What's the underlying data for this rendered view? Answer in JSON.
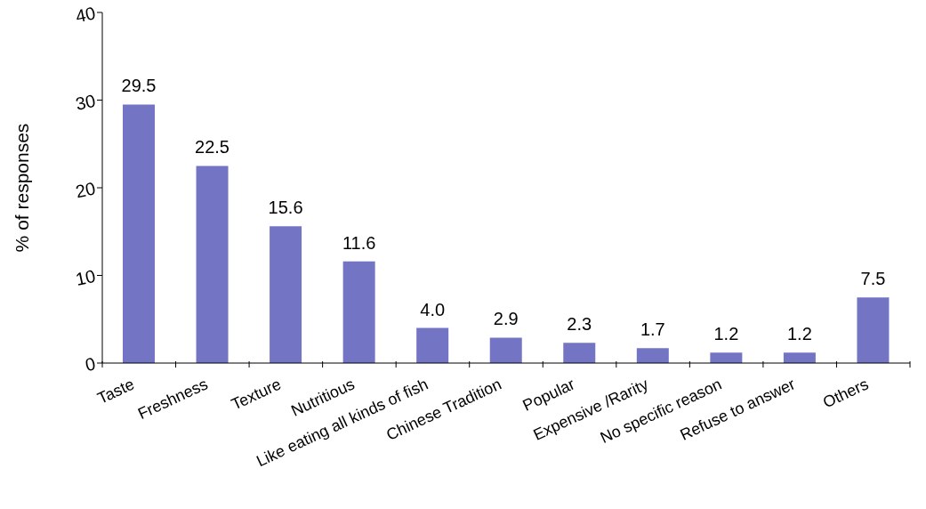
{
  "chart_data": {
    "type": "bar",
    "ylabel": "% of responses",
    "categories": [
      "Taste",
      "Freshness",
      "Texture",
      "Nutritious",
      "Like eating all kinds of fish",
      "Chinese Tradition",
      "Popular",
      "Expensive /Rarity",
      "No specific reason",
      "Refuse to answer",
      "Others"
    ],
    "values": [
      29.5,
      22.5,
      15.6,
      11.6,
      4.0,
      2.9,
      2.3,
      1.7,
      1.2,
      1.2,
      7.5
    ],
    "value_labels": [
      "29.5",
      "22.5",
      "15.6",
      "11.6",
      "4.0",
      "2.9",
      "2.3",
      "1.7",
      "1.2",
      "1.2",
      "7.5"
    ],
    "color": "#7474c4",
    "ylim": [
      0,
      40
    ],
    "yticks": [
      0,
      10,
      20,
      30,
      40
    ]
  }
}
